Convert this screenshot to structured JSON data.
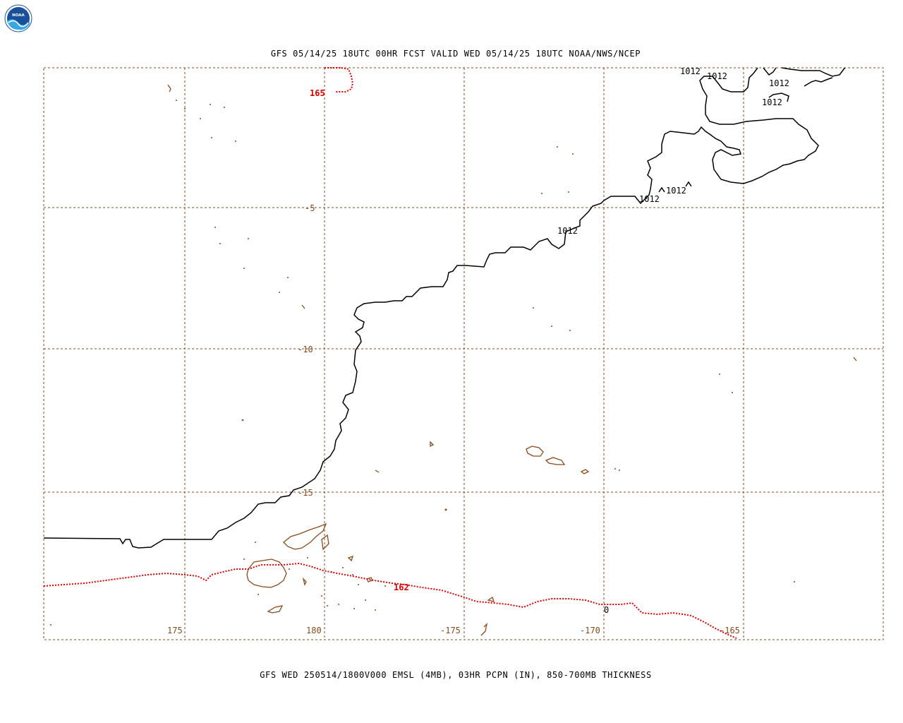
{
  "header": {
    "top_title": "GFS 05/14/25 18UTC 00HR FCST VALID WED 05/14/25 18UTC NOAA/NWS/NCEP",
    "bottom_caption": "GFS WED 250514/1800V000 EMSL (4MB), 03HR PCPN (IN), 850-700MB THICKNESS"
  },
  "logo": {
    "icon": "noaa-logo-icon",
    "text": "NOAA"
  },
  "colors": {
    "grid": "#8b4a1c",
    "coastline": "#8b4a1c",
    "isobar": "#000000",
    "thickness": "#e00000",
    "background": "#ffffff"
  },
  "grid_labels": {
    "lat": [
      "-5",
      "-10",
      "-15"
    ],
    "lon": [
      "175",
      "180",
      "-175",
      "-170",
      "-165"
    ]
  },
  "isobar_labels": [
    "1012",
    "1012",
    "1012",
    "1012",
    "1012",
    "1012",
    "1012"
  ],
  "thickness_labels": [
    "165",
    "162",
    "0"
  ]
}
